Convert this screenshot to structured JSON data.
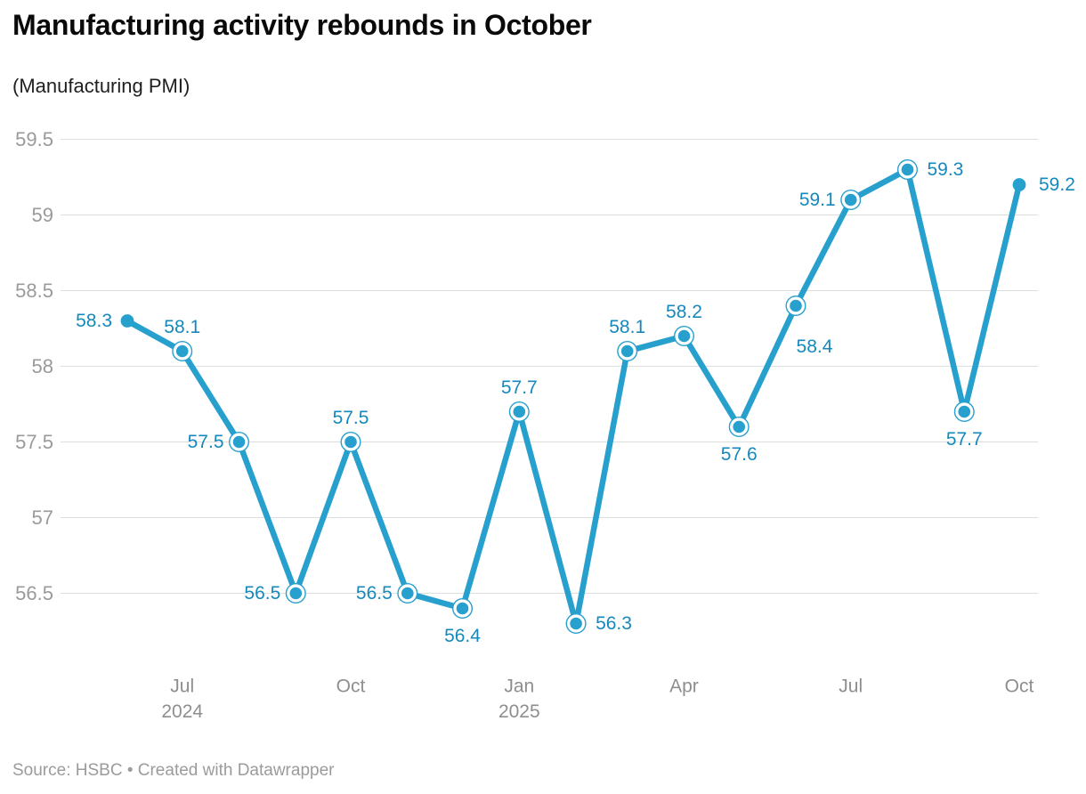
{
  "header": {
    "title": "Manufacturing activity rebounds in October",
    "subtitle": "(Manufacturing PMI)"
  },
  "footer": {
    "text": "Source: HSBC • Created with Datawrapper"
  },
  "colors": {
    "background": "#ffffff",
    "line": "#28a0cd",
    "marker": "#28a0cd",
    "data_label": "#1589bd",
    "grid": "#dedede",
    "y_tick_label": "#9a9a9a",
    "x_tick_label": "#8e8e8e",
    "title": "#0a0a0a",
    "subtitle": "#1f1f1f",
    "footer": "#9b9b9b"
  },
  "chart_data": {
    "type": "line",
    "title": "Manufacturing activity rebounds in October",
    "subtitle": "(Manufacturing PMI)",
    "series_name": "Manufacturing PMI",
    "grid": true,
    "legend": "none",
    "y_axis": {
      "ticks": [
        59.5,
        59,
        58.5,
        58,
        57.5,
        57,
        56.5
      ],
      "ylim_gridlines": [
        56.5,
        59.5
      ]
    },
    "x_axis": {
      "ticks": [
        {
          "date": "2024-07",
          "label": "Jul",
          "sublabel": "2024"
        },
        {
          "date": "2024-10",
          "label": "Oct",
          "sublabel": ""
        },
        {
          "date": "2025-01",
          "label": "Jan",
          "sublabel": "2025"
        },
        {
          "date": "2025-04",
          "label": "Apr",
          "sublabel": ""
        },
        {
          "date": "2025-07",
          "label": "Jul",
          "sublabel": ""
        },
        {
          "date": "2025-10",
          "label": "Oct",
          "sublabel": ""
        }
      ]
    },
    "points": [
      {
        "date": "2024-06",
        "value": 58.3,
        "label": "58.3",
        "label_pos": "left",
        "marker": "dot"
      },
      {
        "date": "2024-07",
        "value": 58.1,
        "label": "58.1",
        "label_pos": "above",
        "marker": "ring"
      },
      {
        "date": "2024-08",
        "value": 57.5,
        "label": "57.5",
        "label_pos": "left",
        "marker": "ring"
      },
      {
        "date": "2024-09",
        "value": 56.5,
        "label": "56.5",
        "label_pos": "left",
        "marker": "ring"
      },
      {
        "date": "2024-10",
        "value": 57.5,
        "label": "57.5",
        "label_pos": "above",
        "marker": "ring"
      },
      {
        "date": "2024-11",
        "value": 56.5,
        "label": "56.5",
        "label_pos": "left",
        "marker": "ring"
      },
      {
        "date": "2024-12",
        "value": 56.4,
        "label": "56.4",
        "label_pos": "below",
        "marker": "ring"
      },
      {
        "date": "2025-01",
        "value": 57.7,
        "label": "57.7",
        "label_pos": "above",
        "marker": "ring"
      },
      {
        "date": "2025-02",
        "value": 56.3,
        "label": "56.3",
        "label_pos": "right",
        "marker": "ring"
      },
      {
        "date": "2025-03",
        "value": 58.1,
        "label": "58.1",
        "label_pos": "above",
        "marker": "ring"
      },
      {
        "date": "2025-04",
        "value": 58.2,
        "label": "58.2",
        "label_pos": "above",
        "marker": "ring"
      },
      {
        "date": "2025-05",
        "value": 57.6,
        "label": "57.6",
        "label_pos": "below",
        "marker": "ring"
      },
      {
        "date": "2025-06",
        "value": 58.4,
        "label": "58.4",
        "label_pos": "below-right",
        "marker": "ring"
      },
      {
        "date": "2025-07",
        "value": 59.1,
        "label": "59.1",
        "label_pos": "left",
        "marker": "ring"
      },
      {
        "date": "2025-08",
        "value": 59.3,
        "label": "59.3",
        "label_pos": "right",
        "marker": "ring"
      },
      {
        "date": "2025-09",
        "value": 57.7,
        "label": "57.7",
        "label_pos": "below",
        "marker": "ring"
      },
      {
        "date": "2025-10",
        "value": 59.2,
        "label": "59.2",
        "label_pos": "right",
        "marker": "dot"
      }
    ]
  }
}
